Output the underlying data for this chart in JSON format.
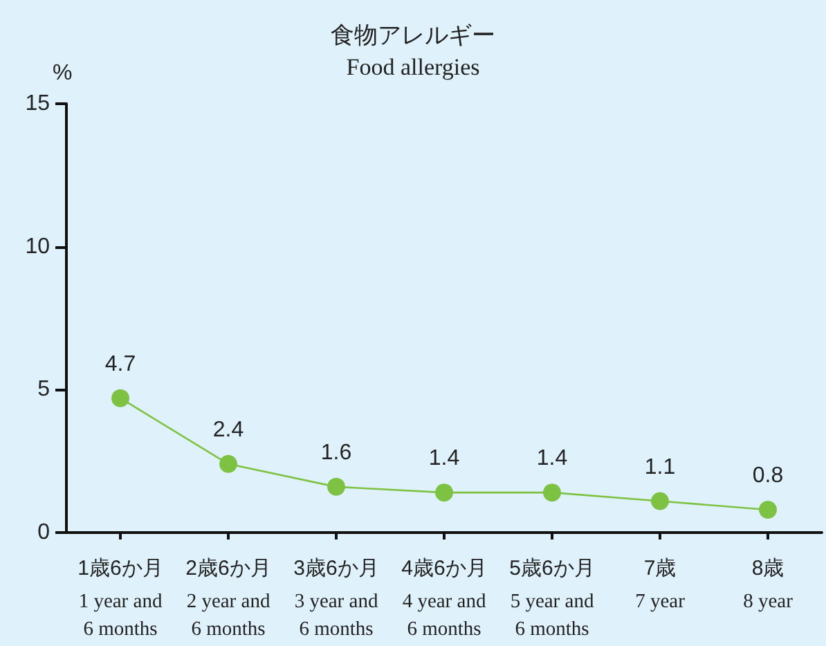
{
  "chart_data": {
    "type": "line",
    "title": "食物アレルギー",
    "subtitle": "Food allergies",
    "ylabel": "%",
    "categories": [
      "1歳6か月\n1 year and\n6 months",
      "2歳6か月\n2 year and\n6 months",
      "3歳6か月\n3 year and\n6 months",
      "4歳6か月\n4 year and\n6 months",
      "5歳6か月\n5 year and\n6 months",
      "7歳\n7 year",
      "8歳\n8 year"
    ],
    "series": [
      {
        "color": "#7dc242",
        "values": [
          4.7,
          2.4,
          1.6,
          1.4,
          1.4,
          1.1,
          0.8
        ]
      }
    ],
    "ylim": [
      0,
      15
    ],
    "yticks": [
      0,
      5,
      10,
      15
    ],
    "grid": false,
    "marker": "circle",
    "line_style": "solid",
    "data_labels": true
  }
}
